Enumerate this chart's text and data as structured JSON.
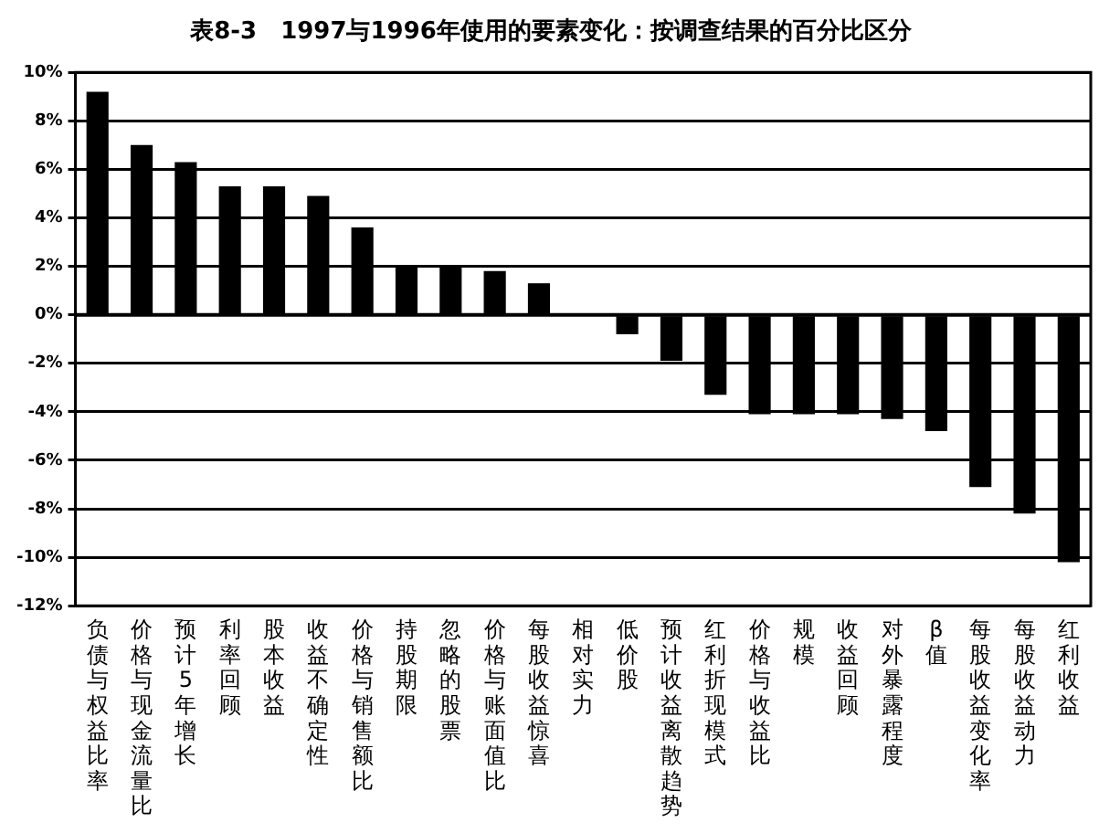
{
  "chart_data": {
    "type": "bar",
    "title": "表8-3　1997与1996年使用的要素变化：按调查结果的百分比区分",
    "categories": [
      "负债与权益比率",
      "价格与现金流量比",
      "预计5年增长",
      "利率回顾",
      "股本收益",
      "收益不确定性",
      "价格与销售额比",
      "持股期限",
      "忽略的股票",
      "价格与账面值比",
      "每股收益惊喜",
      "相对实力",
      "低价股",
      "预计收益离散趋势",
      "红利折现模式",
      "价格与收益比",
      "规模",
      "收益回顾",
      "对外暴露程度",
      "β值",
      "每股收益变化率",
      "每股收益动力",
      "红利收益"
    ],
    "values": [
      9.2,
      7.0,
      6.3,
      5.3,
      5.3,
      4.9,
      3.6,
      2.0,
      2.0,
      1.8,
      1.3,
      0,
      -0.8,
      -1.9,
      -3.3,
      -4.1,
      -4.1,
      -4.1,
      -4.3,
      -4.8,
      -7.1,
      -8.2,
      -10.2
    ],
    "color": "#000000",
    "ylim": [
      -12,
      10
    ],
    "yticks": [
      {
        "value": 10,
        "label": "10%"
      },
      {
        "value": 8,
        "label": "8%"
      },
      {
        "value": 6,
        "label": "6%"
      },
      {
        "value": 4,
        "label": "4%"
      },
      {
        "value": 2,
        "label": "2%"
      },
      {
        "value": 0,
        "label": "0%"
      },
      {
        "value": -2,
        "label": "-2%"
      },
      {
        "value": -4,
        "label": "-4%"
      },
      {
        "value": -6,
        "label": "-6%"
      },
      {
        "value": -8,
        "label": "-8%"
      },
      {
        "value": -10,
        "label": "-10%"
      },
      {
        "value": -12,
        "label": "-12%"
      }
    ],
    "grid": "y"
  }
}
